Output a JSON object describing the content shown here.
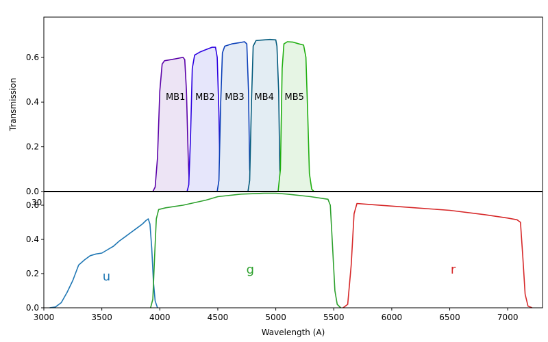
{
  "chart_data": [
    {
      "type": "area",
      "ylabel": "Transmission",
      "xlim": [
        3000,
        7300
      ],
      "ylim": [
        0,
        0.78
      ],
      "yticks": [
        "0.0",
        "0.2",
        "0.4",
        "0.6"
      ],
      "peek_label": "30",
      "series": [
        {
          "name": "MB1",
          "color": "#5a00a8",
          "fill": "#ede4f5",
          "label_x": 4135,
          "label_y": 0.41,
          "points": [
            [
              3940,
              0
            ],
            [
              3960,
              0.02
            ],
            [
              3980,
              0.15
            ],
            [
              4000,
              0.45
            ],
            [
              4020,
              0.57
            ],
            [
              4040,
              0.585
            ],
            [
              4100,
              0.59
            ],
            [
              4150,
              0.595
            ],
            [
              4200,
              0.6
            ],
            [
              4215,
              0.59
            ],
            [
              4230,
              0.45
            ],
            [
              4245,
              0.15
            ],
            [
              4255,
              0.02
            ],
            [
              4270,
              0
            ]
          ]
        },
        {
          "name": "MB2",
          "color": "#2b00e0",
          "fill": "#e6e6fb",
          "label_x": 4390,
          "label_y": 0.41,
          "points": [
            [
              4235,
              0
            ],
            [
              4250,
              0.03
            ],
            [
              4265,
              0.25
            ],
            [
              4280,
              0.55
            ],
            [
              4300,
              0.61
            ],
            [
              4350,
              0.625
            ],
            [
              4400,
              0.635
            ],
            [
              4450,
              0.645
            ],
            [
              4480,
              0.645
            ],
            [
              4495,
              0.6
            ],
            [
              4510,
              0.35
            ],
            [
              4520,
              0.05
            ],
            [
              4530,
              0
            ]
          ]
        },
        {
          "name": "MB3",
          "color": "#0a3eb8",
          "fill": "#e4ebf5",
          "label_x": 4645,
          "label_y": 0.41,
          "points": [
            [
              4495,
              0
            ],
            [
              4510,
              0.05
            ],
            [
              4525,
              0.4
            ],
            [
              4540,
              0.62
            ],
            [
              4560,
              0.65
            ],
            [
              4620,
              0.66
            ],
            [
              4680,
              0.665
            ],
            [
              4730,
              0.67
            ],
            [
              4750,
              0.66
            ],
            [
              4765,
              0.45
            ],
            [
              4775,
              0.1
            ],
            [
              4790,
              0
            ]
          ]
        },
        {
          "name": "MB4",
          "color": "#045b7d",
          "fill": "#e3edf3",
          "label_x": 4900,
          "label_y": 0.41,
          "points": [
            [
              4760,
              0
            ],
            [
              4775,
              0.05
            ],
            [
              4790,
              0.4
            ],
            [
              4805,
              0.65
            ],
            [
              4830,
              0.675
            ],
            [
              4900,
              0.678
            ],
            [
              4950,
              0.68
            ],
            [
              5000,
              0.678
            ],
            [
              5010,
              0.65
            ],
            [
              5025,
              0.45
            ],
            [
              5035,
              0.1
            ],
            [
              5050,
              0
            ]
          ]
        },
        {
          "name": "MB5",
          "color": "#1fae0f",
          "fill": "#e6f5e4",
          "label_x": 5160,
          "label_y": 0.41,
          "points": [
            [
              5020,
              0
            ],
            [
              5040,
              0.1
            ],
            [
              5055,
              0.55
            ],
            [
              5070,
              0.66
            ],
            [
              5100,
              0.67
            ],
            [
              5150,
              0.668
            ],
            [
              5200,
              0.66
            ],
            [
              5240,
              0.655
            ],
            [
              5260,
              0.6
            ],
            [
              5275,
              0.35
            ],
            [
              5290,
              0.08
            ],
            [
              5310,
              0.01
            ],
            [
              5330,
              0
            ]
          ]
        }
      ]
    },
    {
      "type": "line",
      "xlabel": "Wavelength (A)",
      "xlim": [
        3000,
        7300
      ],
      "ylim": [
        0,
        0.68
      ],
      "xticks": [
        "3000",
        "3500",
        "4000",
        "4500",
        "5000",
        "5500",
        "6000",
        "6500",
        "7000"
      ],
      "yticks": [
        "0.0",
        "0.2",
        "0.4",
        "0.6"
      ],
      "series": [
        {
          "name": "u",
          "color": "#1f77b4",
          "label_x": 3540,
          "label_y": 0.16,
          "points": [
            [
              3050,
              0
            ],
            [
              3100,
              0.005
            ],
            [
              3150,
              0.03
            ],
            [
              3200,
              0.09
            ],
            [
              3250,
              0.16
            ],
            [
              3300,
              0.25
            ],
            [
              3350,
              0.28
            ],
            [
              3400,
              0.305
            ],
            [
              3450,
              0.315
            ],
            [
              3500,
              0.32
            ],
            [
              3550,
              0.34
            ],
            [
              3600,
              0.36
            ],
            [
              3650,
              0.39
            ],
            [
              3700,
              0.415
            ],
            [
              3750,
              0.44
            ],
            [
              3800,
              0.465
            ],
            [
              3850,
              0.49
            ],
            [
              3880,
              0.51
            ],
            [
              3900,
              0.52
            ],
            [
              3915,
              0.49
            ],
            [
              3930,
              0.35
            ],
            [
              3945,
              0.15
            ],
            [
              3960,
              0.04
            ],
            [
              3980,
              0
            ]
          ]
        },
        {
          "name": "g",
          "color": "#2ca02c",
          "label_x": 4780,
          "label_y": 0.2,
          "points": [
            [
              3920,
              0
            ],
            [
              3940,
              0.05
            ],
            [
              3955,
              0.3
            ],
            [
              3970,
              0.52
            ],
            [
              3990,
              0.575
            ],
            [
              4050,
              0.585
            ],
            [
              4200,
              0.6
            ],
            [
              4400,
              0.63
            ],
            [
              4500,
              0.65
            ],
            [
              4700,
              0.665
            ],
            [
              4900,
              0.67
            ],
            [
              5000,
              0.67
            ],
            [
              5100,
              0.665
            ],
            [
              5300,
              0.65
            ],
            [
              5450,
              0.635
            ],
            [
              5470,
              0.6
            ],
            [
              5490,
              0.35
            ],
            [
              5510,
              0.1
            ],
            [
              5530,
              0.02
            ],
            [
              5560,
              0
            ]
          ]
        },
        {
          "name": "r",
          "color": "#d62728",
          "label_x": 6530,
          "label_y": 0.2,
          "points": [
            [
              5580,
              0
            ],
            [
              5620,
              0.02
            ],
            [
              5650,
              0.25
            ],
            [
              5675,
              0.55
            ],
            [
              5700,
              0.61
            ],
            [
              5800,
              0.605
            ],
            [
              6000,
              0.595
            ],
            [
              6200,
              0.585
            ],
            [
              6500,
              0.57
            ],
            [
              6800,
              0.545
            ],
            [
              7000,
              0.525
            ],
            [
              7080,
              0.515
            ],
            [
              7110,
              0.5
            ],
            [
              7130,
              0.3
            ],
            [
              7150,
              0.08
            ],
            [
              7175,
              0.01
            ],
            [
              7210,
              0
            ]
          ]
        }
      ]
    }
  ]
}
